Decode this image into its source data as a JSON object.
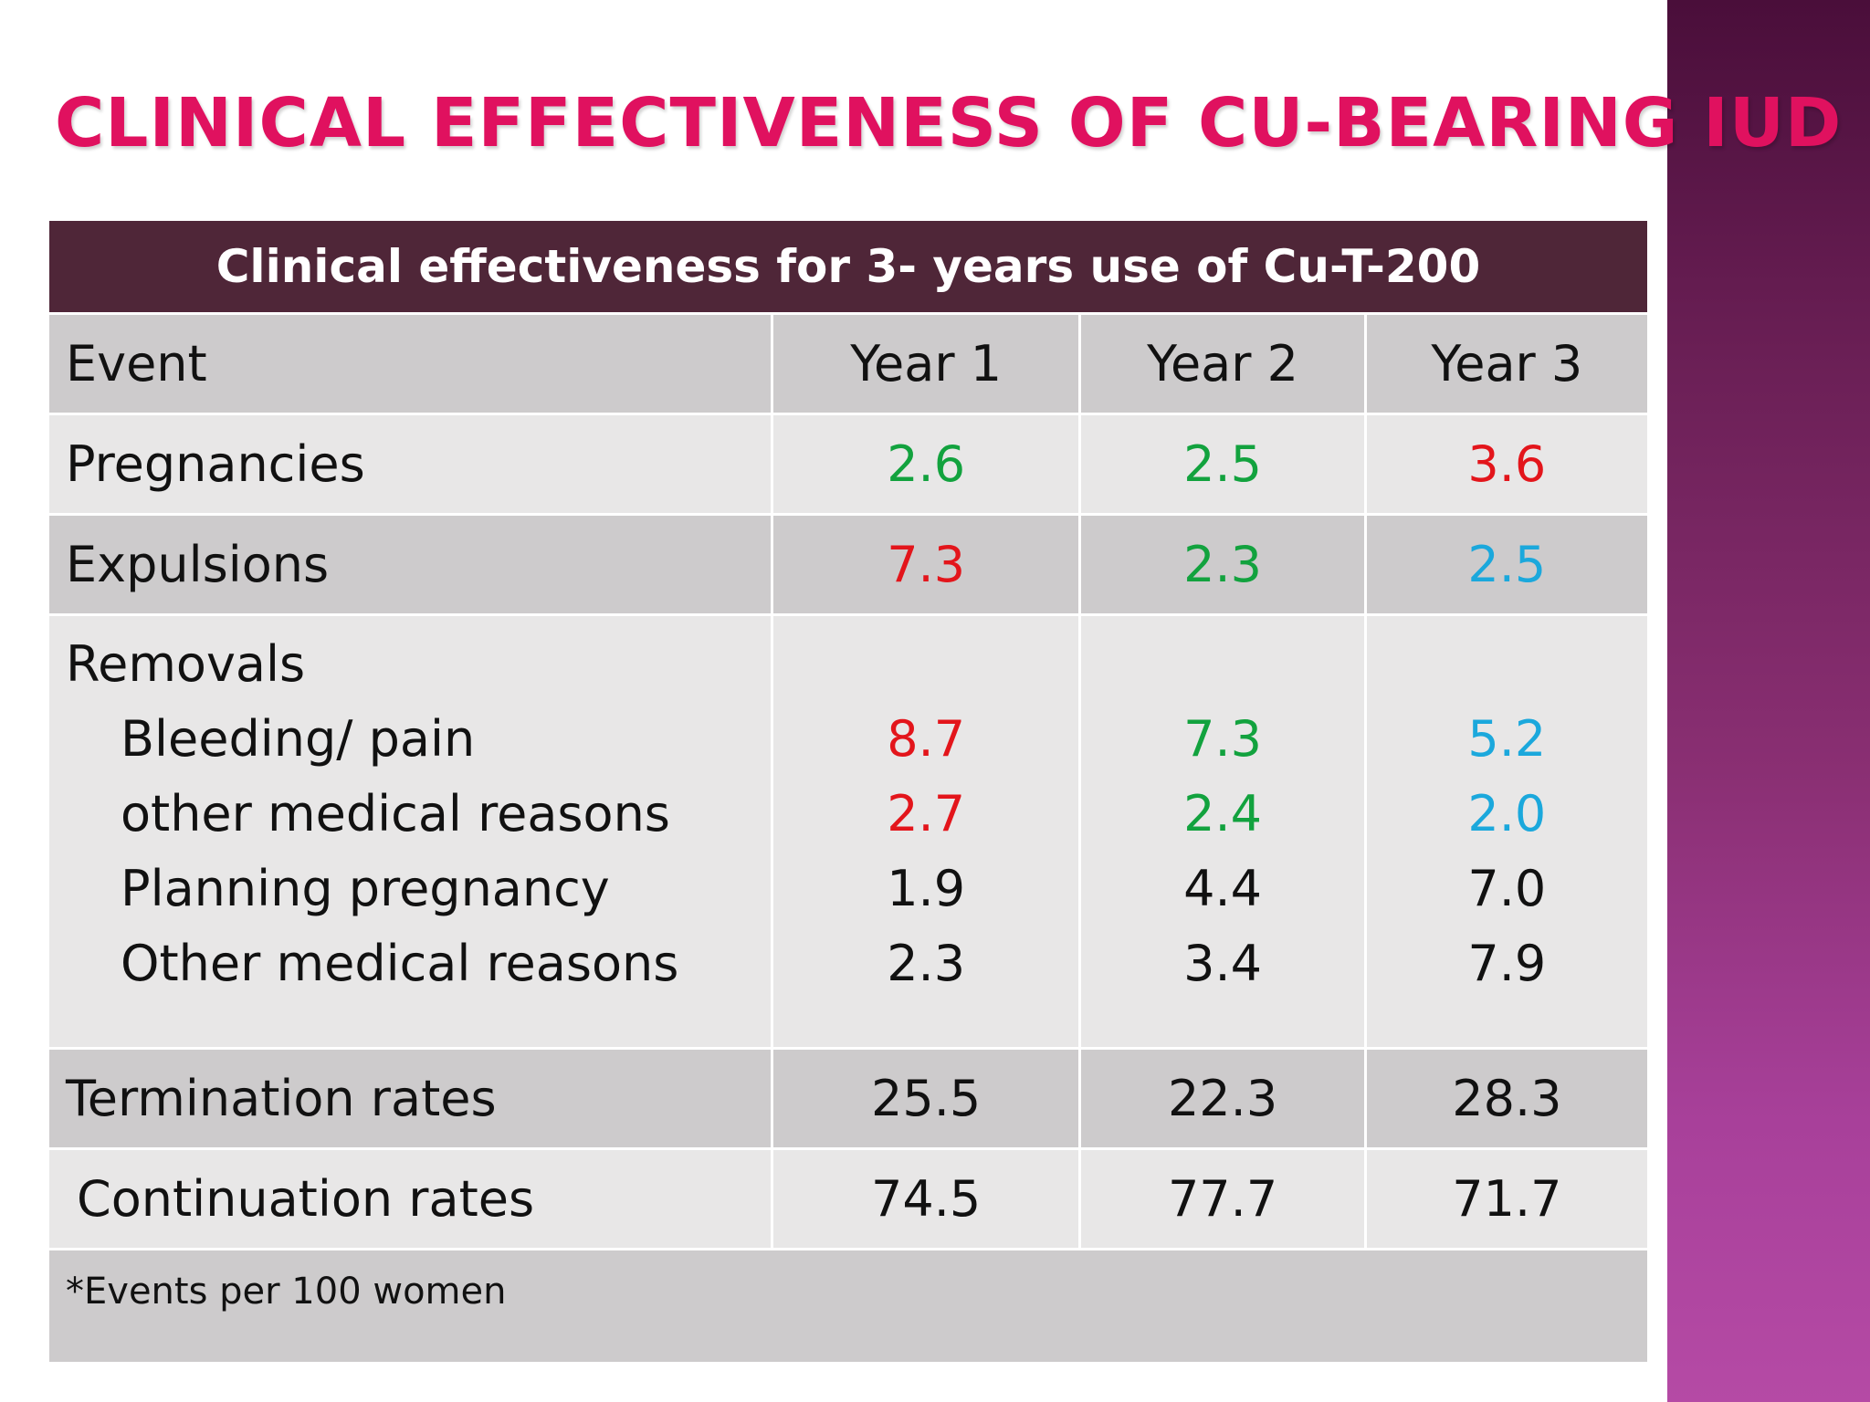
{
  "title": "CLINICAL EFFECTIVENESS OF CU-BEARING IUD",
  "table": {
    "caption": "Clinical effectiveness for 3- years use of Cu-T-200",
    "headers": [
      "Event",
      "Year 1",
      "Year 2",
      "Year 3"
    ],
    "pregnancies": {
      "label": "Pregnancies",
      "values": [
        "2.6",
        "2.5",
        "3.6"
      ],
      "colors": [
        "#12a23e",
        "#12a23e",
        "#e3151b"
      ]
    },
    "expulsions": {
      "label": "Expulsions",
      "values": [
        "7.3",
        "2.3",
        "2.5"
      ],
      "colors": [
        "#e3151b",
        "#12a23e",
        "#1ba8dc"
      ]
    },
    "removals": {
      "label": "Removals",
      "items": [
        {
          "label": "Bleeding/ pain",
          "values": [
            "8.7",
            "7.3",
            "5.2"
          ]
        },
        {
          "label": "other medical reasons",
          "values": [
            "2.7",
            "2.4",
            "2.0"
          ]
        },
        {
          "label": "Planning pregnancy",
          "values": [
            "1.9",
            "4.4",
            "7.0"
          ]
        },
        {
          "label": "Other medical reasons",
          "values": [
            "2.3",
            "3.4",
            "7.9"
          ]
        }
      ]
    },
    "termination": {
      "label": "Termination rates",
      "values": [
        "25.5",
        "22.3",
        "28.3"
      ]
    },
    "continuation": {
      "label": "Continuation rates",
      "values": [
        "74.5",
        "77.7",
        "71.7"
      ]
    },
    "footnote": "*Events per 100 women"
  },
  "colors": {
    "title": "#e0115f",
    "header_band": "#4f2638",
    "green": "#12a23e",
    "red": "#e3151b",
    "blue": "#1ba8dc"
  }
}
